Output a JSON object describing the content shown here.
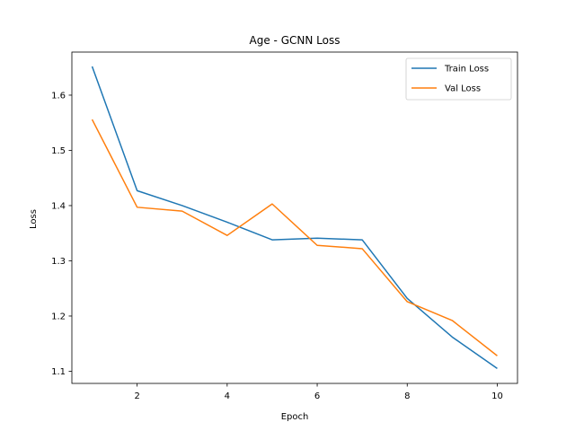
{
  "chart_data": {
    "type": "line",
    "title": "Age - GCNN Loss",
    "xlabel": "Epoch",
    "ylabel": "Loss",
    "xlim": [
      0.55,
      10.45
    ],
    "ylim": [
      1.078,
      1.678
    ],
    "xticks": [
      2,
      4,
      6,
      8,
      10
    ],
    "yticks": [
      1.1,
      1.2,
      1.3,
      1.4,
      1.5,
      1.6
    ],
    "x": [
      1,
      2,
      3,
      4,
      5,
      6,
      7,
      8,
      9,
      10
    ],
    "series": [
      {
        "name": "Train Loss",
        "color": "#1f77b4",
        "values": [
          1.652,
          1.427,
          1.4,
          1.37,
          1.338,
          1.341,
          1.338,
          1.232,
          1.162,
          1.105
        ]
      },
      {
        "name": "Val Loss",
        "color": "#ff7f0e",
        "values": [
          1.556,
          1.397,
          1.39,
          1.346,
          1.403,
          1.328,
          1.322,
          1.226,
          1.192,
          1.128
        ]
      }
    ],
    "grid": false,
    "legend_position": "top-right"
  }
}
